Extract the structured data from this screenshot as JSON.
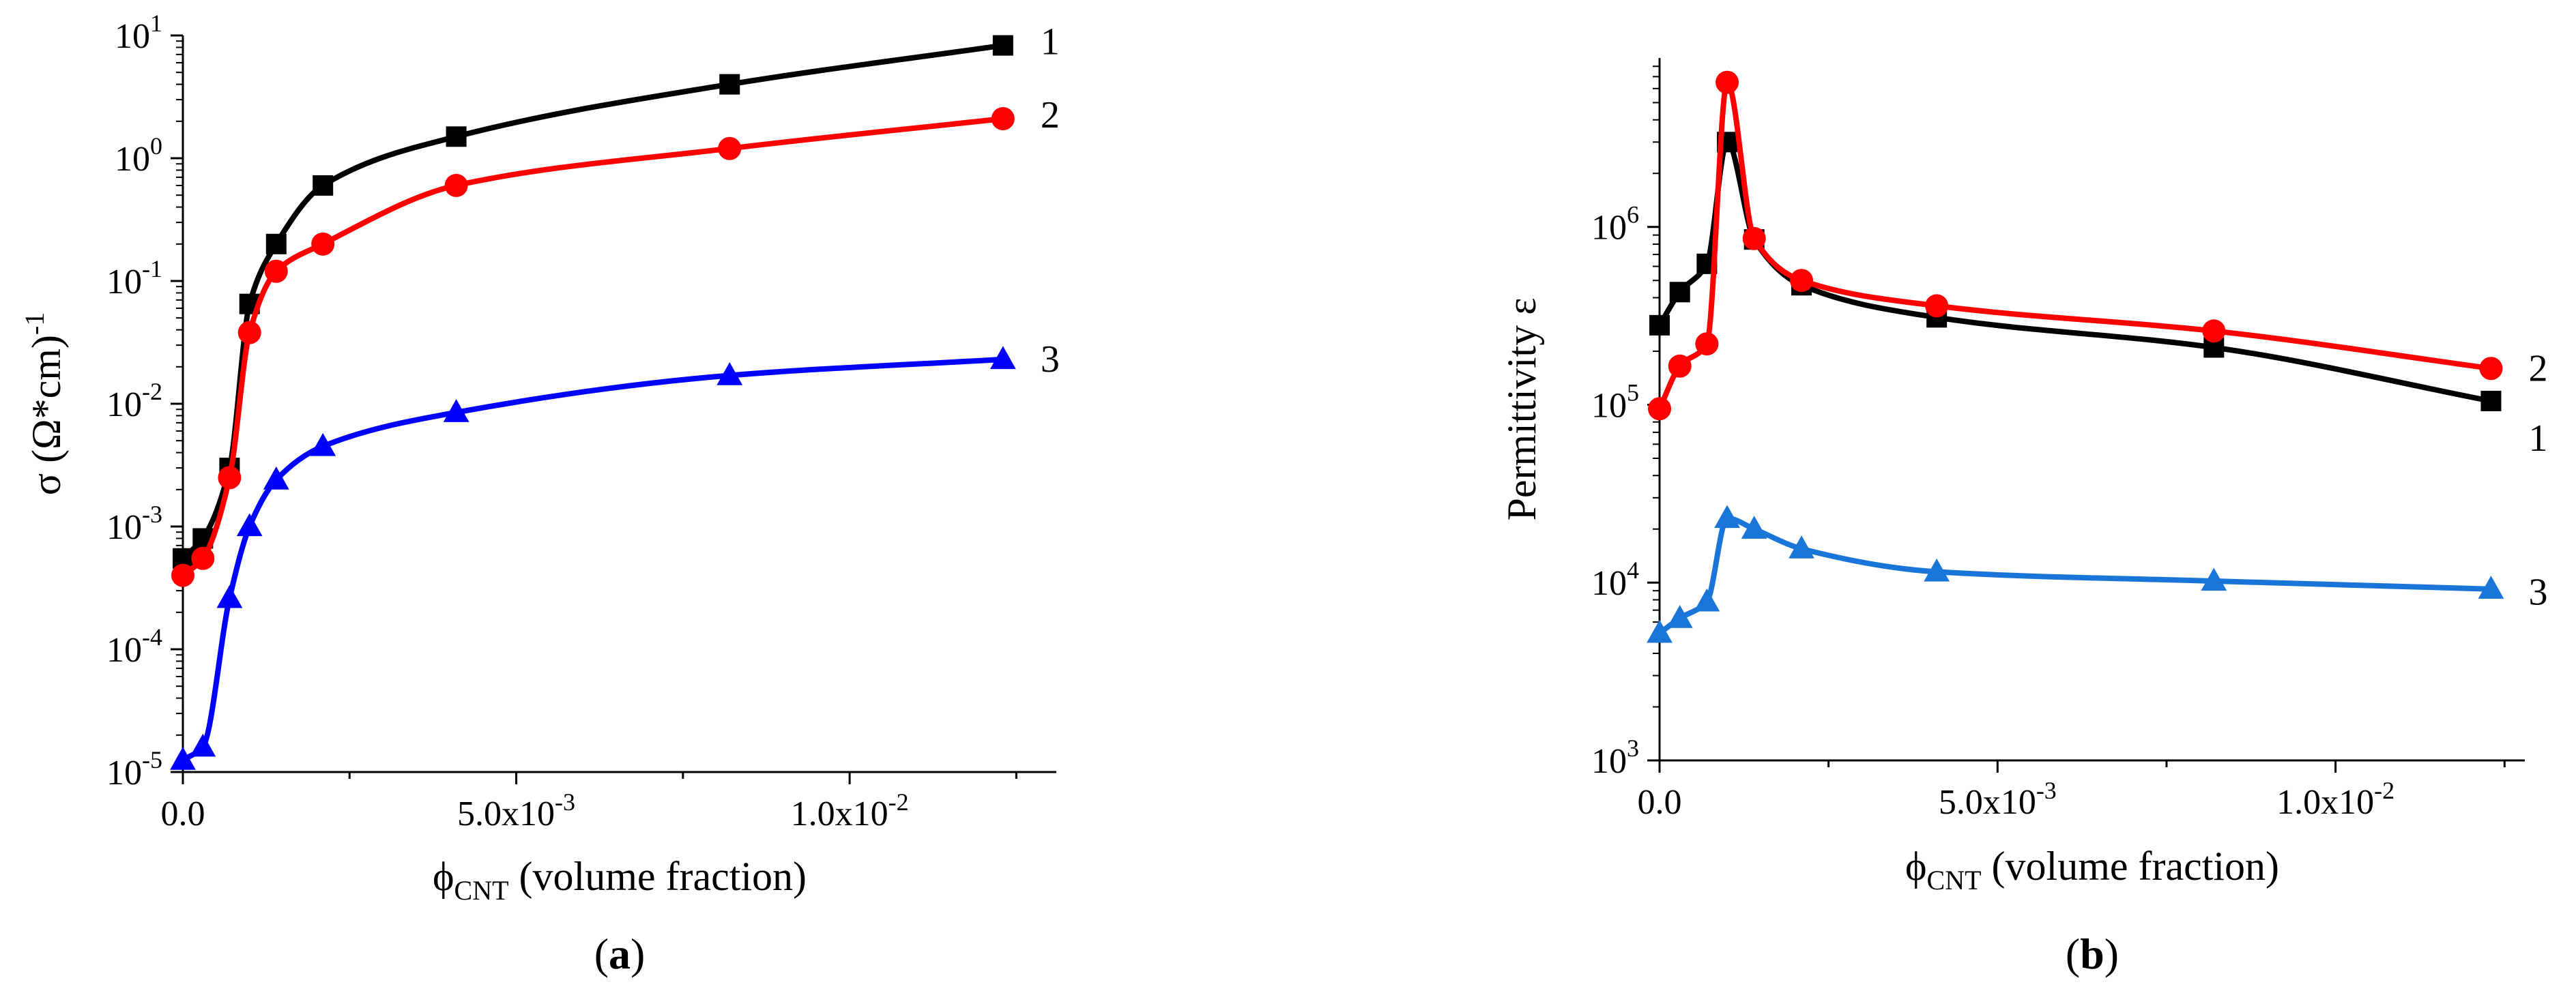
{
  "chart_data": [
    {
      "type": "line",
      "panel_label": "a",
      "yscale": "log",
      "xlim": [
        0,
        0.0131
      ],
      "ylim_exp": [
        -5,
        1
      ],
      "x_ticks": [
        {
          "value": 0,
          "label": "0.0"
        },
        {
          "value": 0.005,
          "label": "5.0x10",
          "exp": "-3"
        },
        {
          "value": 0.01,
          "label": "1.0x10",
          "exp": "-2"
        }
      ],
      "y_ticks": [
        {
          "exp": -5,
          "label": "10",
          "sup": "-5"
        },
        {
          "exp": -4,
          "label": "10",
          "sup": "-4"
        },
        {
          "exp": -3,
          "label": "10",
          "sup": "-3"
        },
        {
          "exp": -2,
          "label": "10",
          "sup": "-2"
        },
        {
          "exp": -1,
          "label": "10",
          "sup": "-1"
        },
        {
          "exp": 0,
          "label": "10",
          "sup": "0"
        },
        {
          "exp": 1,
          "label": "10",
          "sup": "1"
        }
      ],
      "xlabel": {
        "sym": "ϕ",
        "sub": "CNT",
        "rest": " (volume fraction)"
      },
      "ylabel": {
        "main": "σ (Ω*cm)",
        "sup": "-1"
      },
      "series": [
        {
          "name": "1",
          "color": "#000000",
          "marker": "square",
          "x": [
            0.0,
            0.0003,
            0.0007,
            0.001,
            0.0014,
            0.0021,
            0.0041,
            0.0082,
            0.0123
          ],
          "y": [
            0.00055,
            0.0008,
            0.003,
            0.065,
            0.2,
            0.6,
            1.5,
            4.0,
            8.3
          ]
        },
        {
          "name": "2",
          "color": "#ff0000",
          "marker": "circle",
          "x": [
            0.0,
            0.0003,
            0.0007,
            0.001,
            0.0014,
            0.0021,
            0.0041,
            0.0082,
            0.0123
          ],
          "y": [
            0.0004,
            0.00055,
            0.0025,
            0.038,
            0.12,
            0.2,
            0.6,
            1.2,
            2.1
          ]
        },
        {
          "name": "3",
          "color": "#0000ff",
          "marker": "triangle",
          "x": [
            0.0,
            0.0003,
            0.0007,
            0.001,
            0.0014,
            0.0021,
            0.0041,
            0.0082,
            0.0123
          ],
          "y": [
            1.25e-05,
            1.6e-05,
            0.00026,
            0.001,
            0.0024,
            0.0045,
            0.0085,
            0.017,
            0.023
          ]
        }
      ]
    },
    {
      "type": "line",
      "panel_label": "b",
      "yscale": "log",
      "xlim": [
        0,
        0.0128
      ],
      "ylim_exp": [
        3,
        6.95
      ],
      "x_ticks": [
        {
          "value": 0,
          "label": "0.0"
        },
        {
          "value": 0.005,
          "label": "5.0x10",
          "exp": "-3"
        },
        {
          "value": 0.01,
          "label": "1.0x10",
          "exp": "-2"
        }
      ],
      "y_ticks": [
        {
          "exp": 3,
          "label": "10",
          "sup": "3"
        },
        {
          "exp": 4,
          "label": "10",
          "sup": "4"
        },
        {
          "exp": 5,
          "label": "10",
          "sup": "5"
        },
        {
          "exp": 6,
          "label": "10",
          "sup": "6"
        }
      ],
      "xlabel": {
        "sym": "ϕ",
        "sub": "CNT",
        "rest": " (volume fraction)"
      },
      "ylabel": {
        "main": "Permittivity ε",
        "sup": ""
      },
      "series": [
        {
          "name": "1",
          "color": "#000000",
          "marker": "square",
          "x": [
            0.0,
            0.0003,
            0.0007,
            0.001,
            0.0014,
            0.0021,
            0.0041,
            0.0082,
            0.0123
          ],
          "y": [
            280000,
            430000,
            620000,
            3000000,
            850000,
            470000,
            310000,
            210000,
            105000
          ]
        },
        {
          "name": "2",
          "color": "#ff0000",
          "marker": "circle",
          "x": [
            0.0,
            0.0003,
            0.0007,
            0.001,
            0.0014,
            0.0021,
            0.0041,
            0.0082,
            0.0123
          ],
          "y": [
            95000,
            165000,
            220000,
            6500000,
            860000,
            500000,
            360000,
            260000,
            160000
          ]
        },
        {
          "name": "3",
          "color": "#1a75d9",
          "marker": "triangle",
          "x": [
            0.0,
            0.0003,
            0.0007,
            0.001,
            0.0014,
            0.0021,
            0.0041,
            0.0082,
            0.0123
          ],
          "y": [
            5200,
            6300,
            7800,
            23000,
            20000,
            15500,
            11500,
            10200,
            9200
          ]
        }
      ]
    }
  ]
}
